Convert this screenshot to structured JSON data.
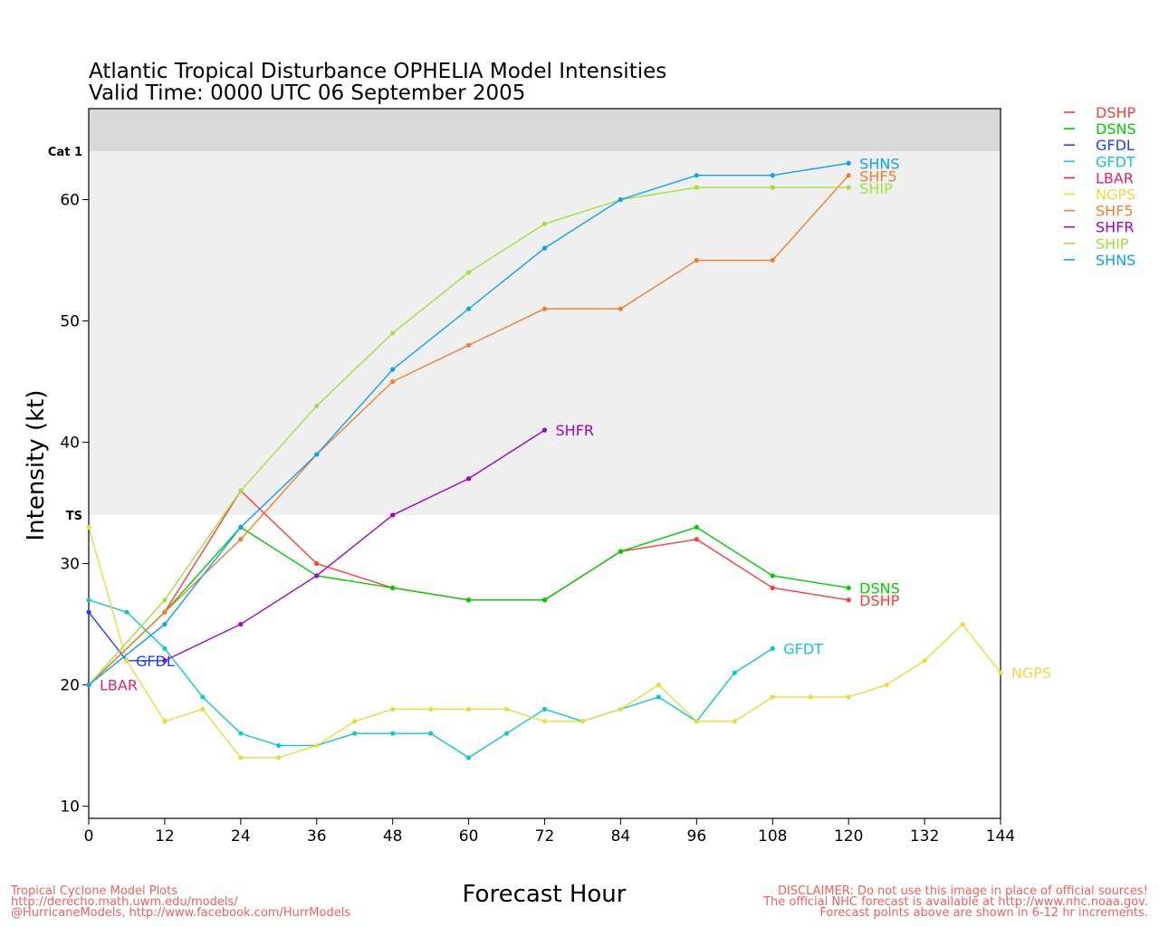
{
  "chart_data": {
    "type": "line",
    "title": "Atlantic Tropical Disturbance OPHELIA Model Intensities",
    "subtitle": "Valid Time: 0000 UTC 06 September 2005",
    "xlabel": "Forecast Hour",
    "ylabel": "Intensity (kt)",
    "xlim": [
      0,
      144
    ],
    "ylim": [
      9,
      67.5
    ],
    "xticks": [
      0,
      12,
      24,
      36,
      48,
      60,
      72,
      84,
      96,
      108,
      120,
      132,
      144
    ],
    "yticks": [
      10,
      20,
      30,
      40,
      50,
      60
    ],
    "bands": [
      {
        "label": "TS",
        "from": 34,
        "to": 64,
        "color": "#efefef"
      },
      {
        "label": "Cat 1",
        "from": 64,
        "to": 67.5,
        "color": "#d9d9d9"
      }
    ],
    "legend_position": "right",
    "series": [
      {
        "name": "DSHP",
        "color": "#ff3b3b",
        "x": [
          0,
          12,
          24,
          36,
          48,
          60,
          72,
          84,
          96,
          108,
          120
        ],
        "y": [
          20,
          26,
          36,
          30,
          28,
          27,
          27,
          31,
          32,
          28,
          27
        ]
      },
      {
        "name": "DSNS",
        "color": "#00cc00",
        "x": [
          0,
          12,
          24,
          36,
          48,
          60,
          72,
          84,
          96,
          108,
          120
        ],
        "y": [
          20,
          26,
          33,
          29,
          28,
          27,
          27,
          31,
          33,
          29,
          28
        ]
      },
      {
        "name": "GFDL",
        "color": "#1f3fff",
        "x": [
          0,
          6,
          12
        ],
        "y": [
          26,
          22,
          22
        ]
      },
      {
        "name": "GFDT",
        "color": "#10c8c8",
        "x": [
          0,
          6,
          12,
          18,
          24,
          30,
          36,
          42,
          48,
          54,
          60,
          66,
          72,
          78,
          84,
          90,
          96,
          102,
          108
        ],
        "y": [
          27,
          26,
          23,
          19,
          16,
          15,
          15,
          16,
          16,
          16,
          14,
          16,
          18,
          17,
          18,
          19,
          17,
          21,
          23
        ]
      },
      {
        "name": "LBAR",
        "color": "#e0207a",
        "x": [
          0
        ],
        "y": [
          20
        ]
      },
      {
        "name": "NGPS",
        "color": "#e8dc40",
        "x": [
          0,
          6,
          12,
          18,
          24,
          30,
          36,
          42,
          48,
          54,
          60,
          66,
          72,
          78,
          84,
          90,
          96,
          102,
          108,
          114,
          120,
          126,
          132,
          138,
          144
        ],
        "y": [
          33,
          22,
          17,
          18,
          14,
          14,
          15,
          17,
          18,
          18,
          18,
          18,
          17,
          17,
          18,
          20,
          17,
          17,
          19,
          19,
          19,
          20,
          22,
          25,
          21
        ]
      },
      {
        "name": "SHF5",
        "color": "#f08030",
        "x": [
          0,
          12,
          24,
          36,
          48,
          60,
          72,
          84,
          96,
          108,
          120
        ],
        "y": [
          20,
          26,
          32,
          39,
          45,
          48,
          51,
          51,
          55,
          55,
          62
        ]
      },
      {
        "name": "SHFR",
        "color": "#a000c8",
        "x": [
          12,
          24,
          36,
          48,
          60,
          72
        ],
        "y": [
          22,
          25,
          29,
          34,
          37,
          41
        ]
      },
      {
        "name": "SHIP",
        "color": "#a0e040",
        "x": [
          0,
          12,
          24,
          36,
          48,
          60,
          72,
          84,
          96,
          108,
          120
        ],
        "y": [
          20,
          27,
          36,
          43,
          49,
          54,
          58,
          60,
          61,
          61,
          61
        ]
      },
      {
        "name": "SHNS",
        "color": "#10a0f0",
        "x": [
          0,
          12,
          24,
          36,
          48,
          60,
          72,
          84,
          96,
          108,
          120
        ],
        "y": [
          20,
          25,
          33,
          39,
          46,
          51,
          56,
          60,
          62,
          62,
          63
        ]
      }
    ]
  },
  "footer": {
    "left": [
      "Tropical Cyclone Model Plots",
      "http://derecho.math.uwm.edu/models/",
      "@HurricaneModels, http://www.facebook.com/HurrModels"
    ],
    "right": [
      "DISCLAIMER: Do not use this image in place of official sources!",
      "The official NHC forecast is available at http://www.nhc.noaa.gov.",
      "Forecast points above are shown in 6-12 hr increments."
    ],
    "left_color": "#f06060",
    "right_color": "#f06060"
  }
}
